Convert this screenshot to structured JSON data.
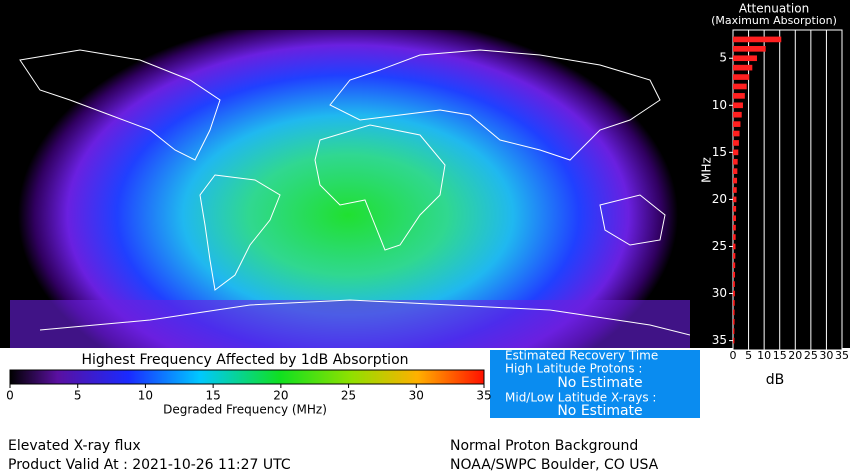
{
  "chart_data": {
    "type": "bar",
    "orientation": "horizontal",
    "title": "Attenuation",
    "subtitle": "(Maximum Absorption)",
    "y_label": "MHz",
    "x_label": "dB",
    "y": [
      3,
      4,
      5,
      6,
      7,
      8,
      9,
      10,
      11,
      12,
      13,
      14,
      15,
      16,
      17,
      18,
      19,
      20,
      21,
      22,
      23,
      24,
      25,
      26,
      27,
      28,
      29,
      30,
      31,
      32,
      33,
      34,
      35
    ],
    "values": [
      15.5,
      10.5,
      7.7,
      6.2,
      5.2,
      4.4,
      3.8,
      3.2,
      2.8,
      2.4,
      2.1,
      1.9,
      1.7,
      1.5,
      1.4,
      1.3,
      1.2,
      1.1,
      1.0,
      0.95,
      0.9,
      0.85,
      0.8,
      0.75,
      0.7,
      0.65,
      0.6,
      0.6,
      0.55,
      0.5,
      0.5,
      0.45,
      0.45
    ],
    "color": "#ff2020",
    "xlim": [
      0,
      35
    ],
    "xticks": [
      0,
      5,
      10,
      15,
      20,
      25,
      30,
      35
    ],
    "ylim": [
      2,
      36
    ],
    "yticks": [
      5,
      10,
      15,
      20,
      25,
      30,
      35
    ],
    "grid": true
  },
  "colorbar": {
    "title": "Highest Frequency Affected by 1dB Absorption",
    "label": "Degraded Frequency (MHz)",
    "lim": [
      0,
      35
    ],
    "ticks": [
      0,
      5,
      10,
      15,
      20,
      25,
      30,
      35
    ]
  },
  "recovery": {
    "title": "Estimated Recovery Time",
    "high_label": "High Latitude Protons :",
    "high_value": "No Estimate",
    "mid_label": "Mid/Low Latitude X-rays :",
    "mid_value": "No Estimate"
  },
  "footer": {
    "left_1": "Elevated X-ray flux",
    "left_2": "Product Valid At : 2021-10-26 11:27 UTC",
    "right_1": "Normal Proton Background",
    "right_2": "NOAA/SWPC Boulder, CO USA"
  }
}
